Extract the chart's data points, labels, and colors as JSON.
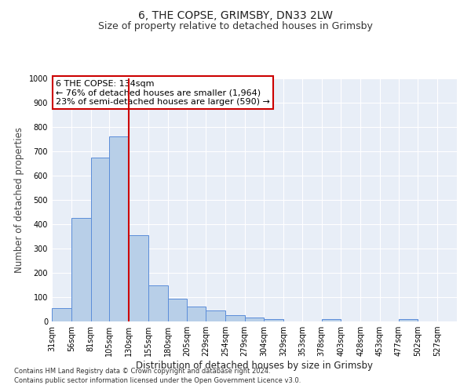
{
  "title": "6, THE COPSE, GRIMSBY, DN33 2LW",
  "subtitle": "Size of property relative to detached houses in Grimsby",
  "xlabel": "Distribution of detached houses by size in Grimsby",
  "ylabel": "Number of detached properties",
  "footnote1": "Contains HM Land Registry data © Crown copyright and database right 2024.",
  "footnote2": "Contains public sector information licensed under the Open Government Licence v3.0.",
  "bar_left_edges": [
    31,
    56,
    81,
    105,
    130,
    155,
    180,
    205,
    229,
    254,
    279,
    304,
    329,
    353,
    378,
    403,
    428,
    453,
    477,
    502,
    527
  ],
  "bar_widths": [
    25,
    25,
    24,
    25,
    25,
    25,
    25,
    24,
    25,
    25,
    25,
    25,
    24,
    25,
    25,
    25,
    25,
    24,
    25,
    25,
    25
  ],
  "bar_heights": [
    55,
    425,
    675,
    760,
    355,
    150,
    95,
    60,
    45,
    25,
    15,
    10,
    0,
    0,
    10,
    0,
    0,
    0,
    10,
    0,
    0
  ],
  "bar_color": "#b8cfe8",
  "bar_edgecolor": "#5b8dd9",
  "bar_linewidth": 0.7,
  "vline_x": 130,
  "vline_color": "#cc0000",
  "vline_linewidth": 1.5,
  "annotation_text": "6 THE COPSE: 134sqm\n← 76% of detached houses are smaller (1,964)\n23% of semi-detached houses are larger (590) →",
  "annotation_box_edgecolor": "#cc0000",
  "ylim": [
    0,
    1000
  ],
  "yticks": [
    0,
    100,
    200,
    300,
    400,
    500,
    600,
    700,
    800,
    900,
    1000
  ],
  "xlim_left": 31,
  "xlim_right": 552,
  "bg_color": "#e8eef7",
  "fig_bg_color": "#ffffff",
  "title_fontsize": 10,
  "subtitle_fontsize": 9,
  "tick_label_fontsize": 7,
  "ylabel_fontsize": 8.5,
  "xlabel_fontsize": 8.5,
  "footnote_fontsize": 6
}
